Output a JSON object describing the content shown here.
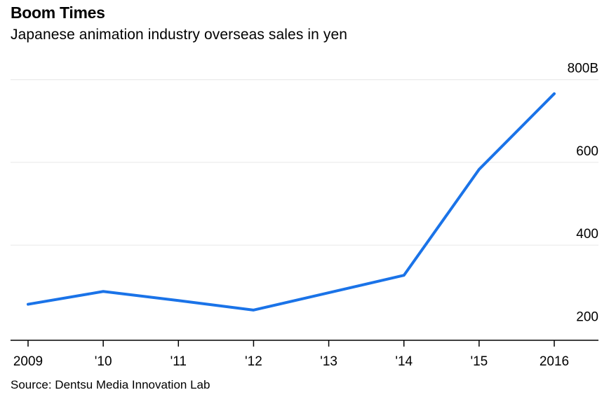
{
  "header": {
    "title": "Boom Times",
    "subtitle": "Japanese animation industry overseas sales in yen"
  },
  "footer": {
    "source": "Source: Dentsu Media Innovation Lab"
  },
  "chart_data": {
    "type": "line",
    "title": "Boom Times",
    "subtitle": "Japanese animation industry overseas sales in yen",
    "x": [
      2009,
      2010,
      2011,
      2012,
      2013,
      2014,
      2015,
      2016
    ],
    "x_tick_labels": [
      "2009",
      "'10",
      "'11",
      "'12",
      "'13",
      "'14",
      "'15",
      "2016"
    ],
    "series": [
      {
        "values": [
          257,
          288,
          266,
          243,
          285,
          327,
          583,
          766
        ],
        "color": "#1a73e8"
      }
    ],
    "ylim": [
      170,
      830
    ],
    "y_ticks": [
      200,
      400,
      600,
      800
    ],
    "y_tick_labels": [
      "200",
      "400",
      "600",
      "800B"
    ],
    "y_axis_side": "right",
    "grid": true,
    "legend": "none",
    "source": "Source: Dentsu Media Innovation Lab"
  }
}
